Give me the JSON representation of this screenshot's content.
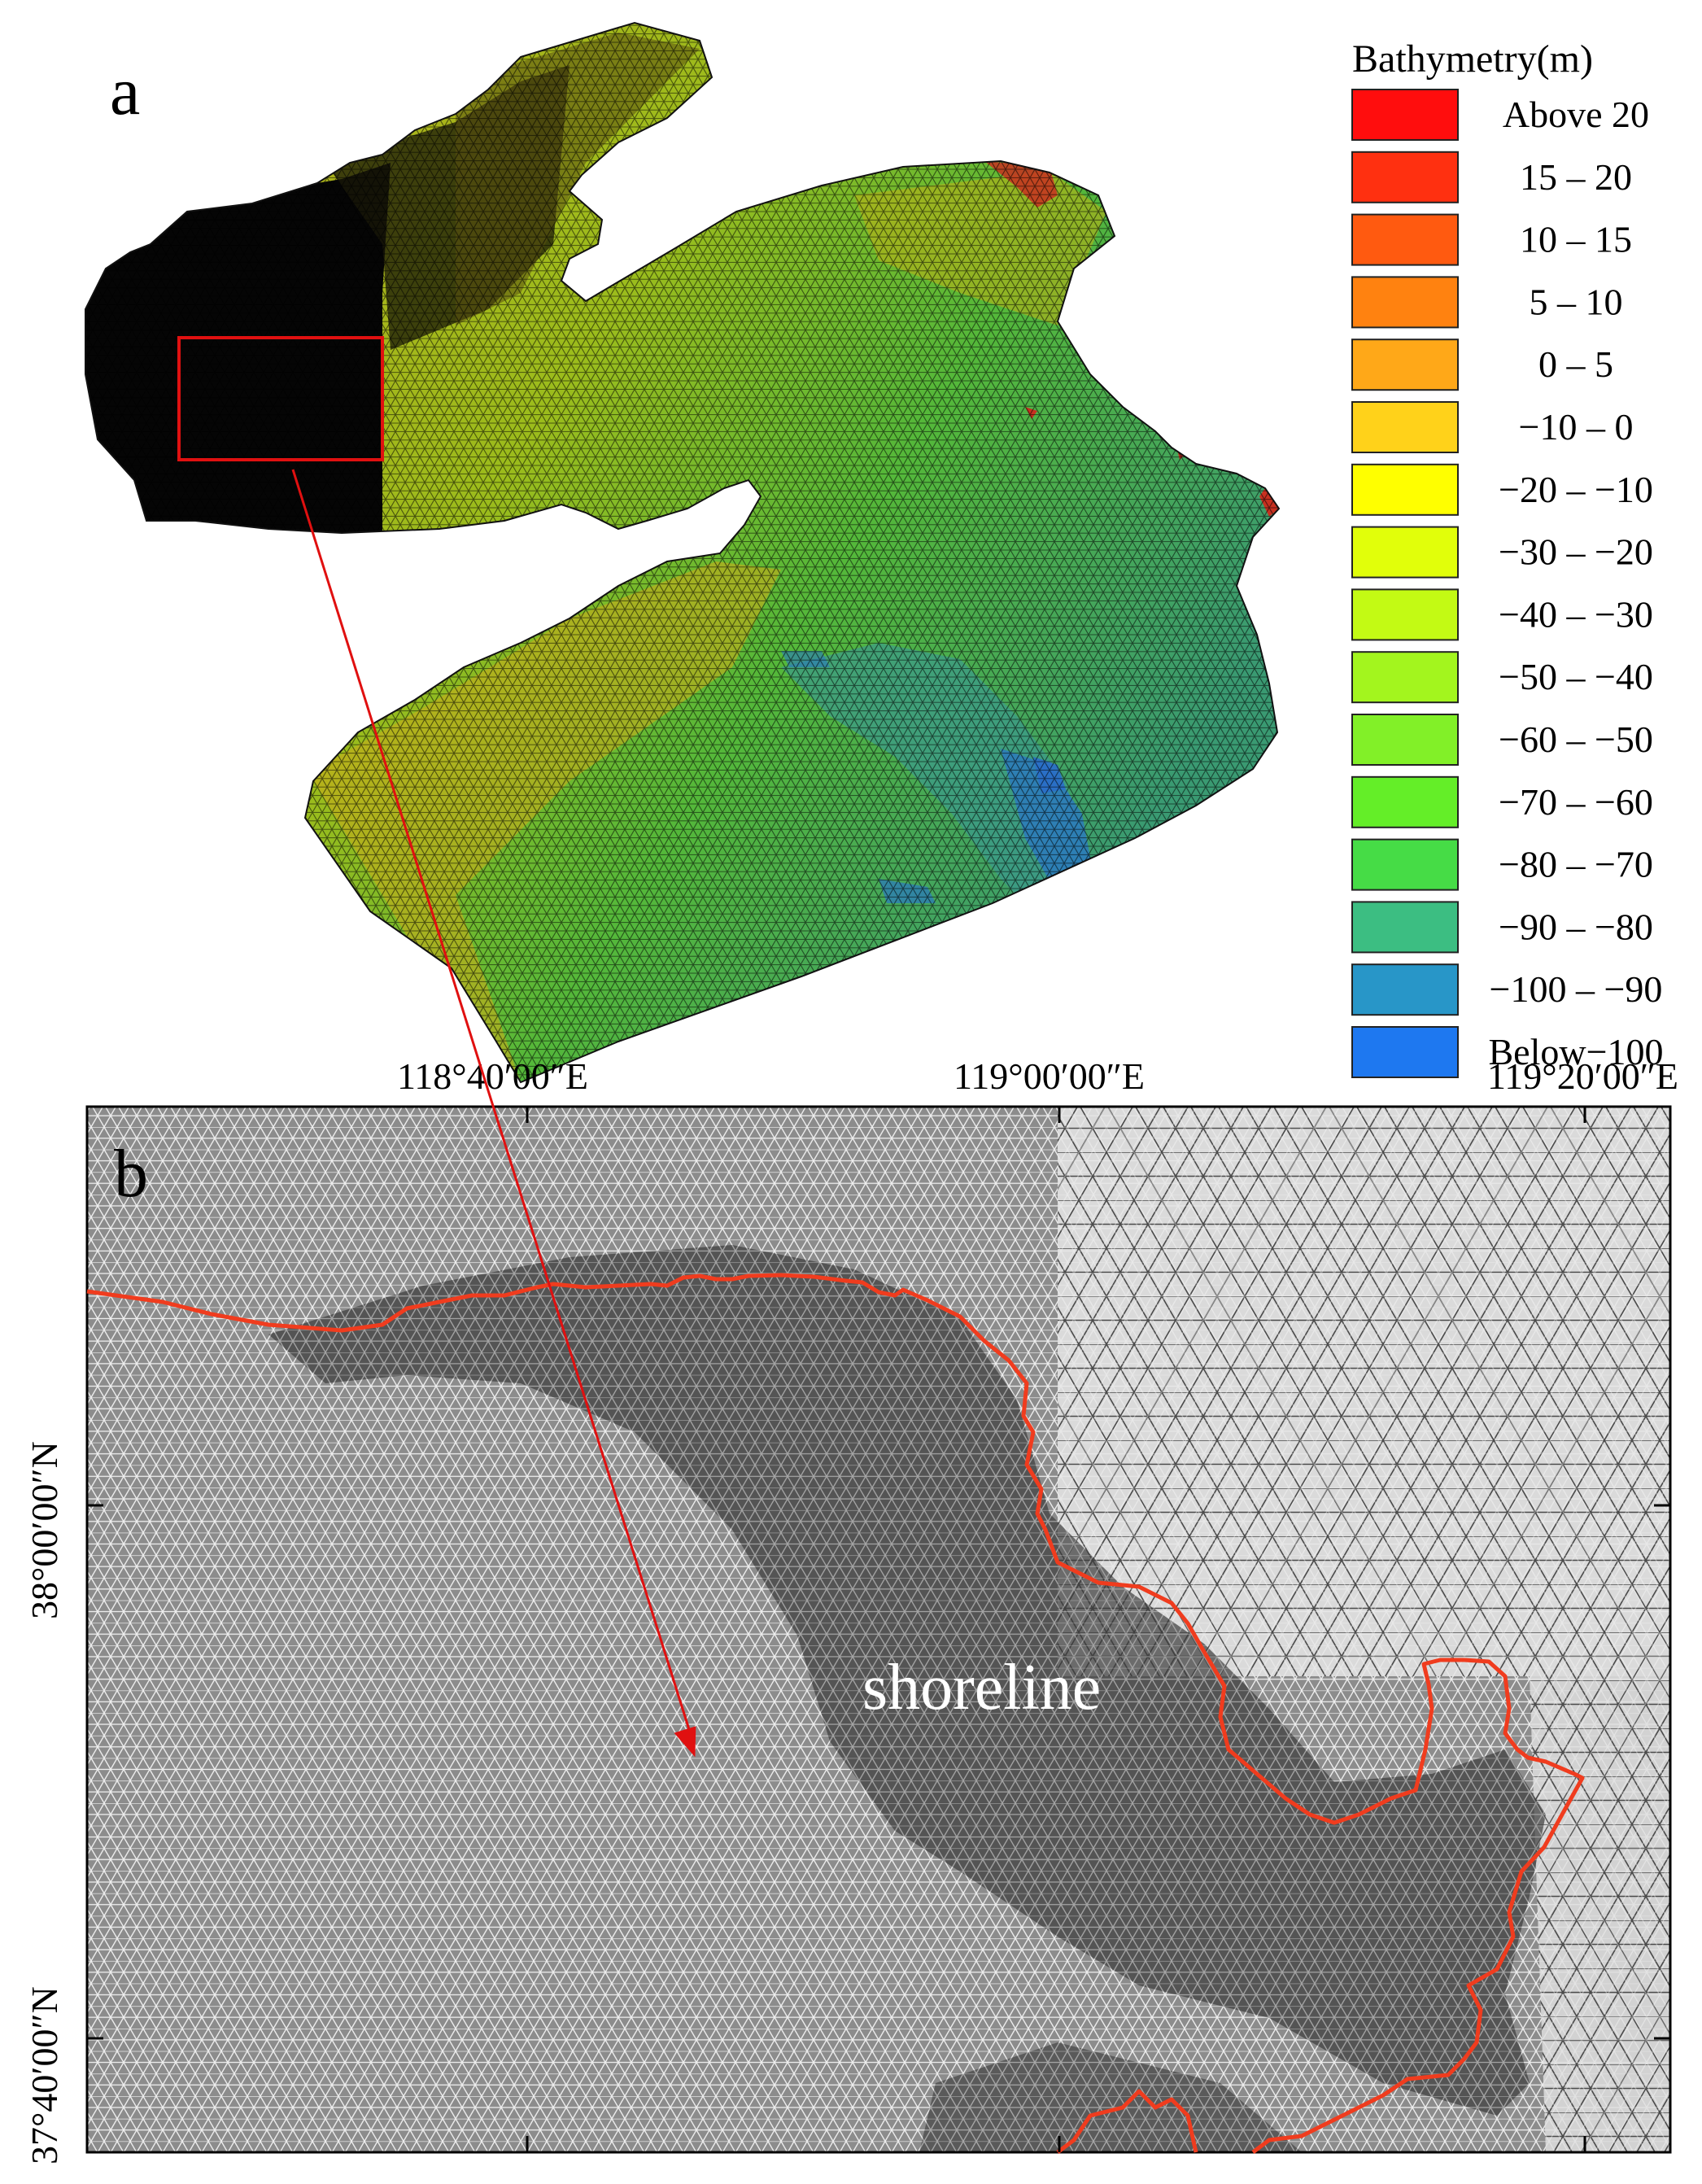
{
  "panel_a": {
    "letter": "a",
    "legend": {
      "title": "Bathymetry(m)",
      "classes": [
        {
          "label": "Above 20",
          "color": "#ff0d0d"
        },
        {
          "label": "15 – 20",
          "color": "#ff3010"
        },
        {
          "label": "10 – 15",
          "color": "#ff5a10"
        },
        {
          "label": "5 – 10",
          "color": "#ff8210"
        },
        {
          "label": "0 – 5",
          "color": "#ffa818"
        },
        {
          "label": "−10 – 0",
          "color": "#ffd21a"
        },
        {
          "label": "−20 – −10",
          "color": "#ffff00"
        },
        {
          "label": "−30 – −20",
          "color": "#e1ff0a"
        },
        {
          "label": "−40 – −30",
          "color": "#c3fa14"
        },
        {
          "label": "−50 – −40",
          "color": "#a3f51e"
        },
        {
          "label": "−60 – −50",
          "color": "#82f028"
        },
        {
          "label": "−70 – −60",
          "color": "#64ee28"
        },
        {
          "label": "−80 – −70",
          "color": "#46dc46"
        },
        {
          "label": "−90 – −80",
          "color": "#3cbe82"
        },
        {
          "label": "−100 – −90",
          "color": "#2896c8"
        },
        {
          "label": "Below−100",
          "color": "#1e78f0"
        }
      ]
    },
    "mesh_colors": {
      "near_shore": "#c8a21a",
      "mid": "#8cc020",
      "deep": "#3a9c70",
      "deepest": "#2a6ec8",
      "dense_mesh": "#050505",
      "shallow_edge": "#c83020"
    },
    "zoom_box_color": "#e01010"
  },
  "panel_b": {
    "letter": "b",
    "x_ticks": [
      "118°40′00″E",
      "119°00′00″E",
      "119°20′00″E"
    ],
    "y_ticks": [
      "38°00′00″N",
      "37°40′00″N"
    ],
    "shoreline_label": "shoreline",
    "shoreline_color": "#f03c1e",
    "arrow_color": "#e01010",
    "mesh_background": "#8e8e8e"
  }
}
